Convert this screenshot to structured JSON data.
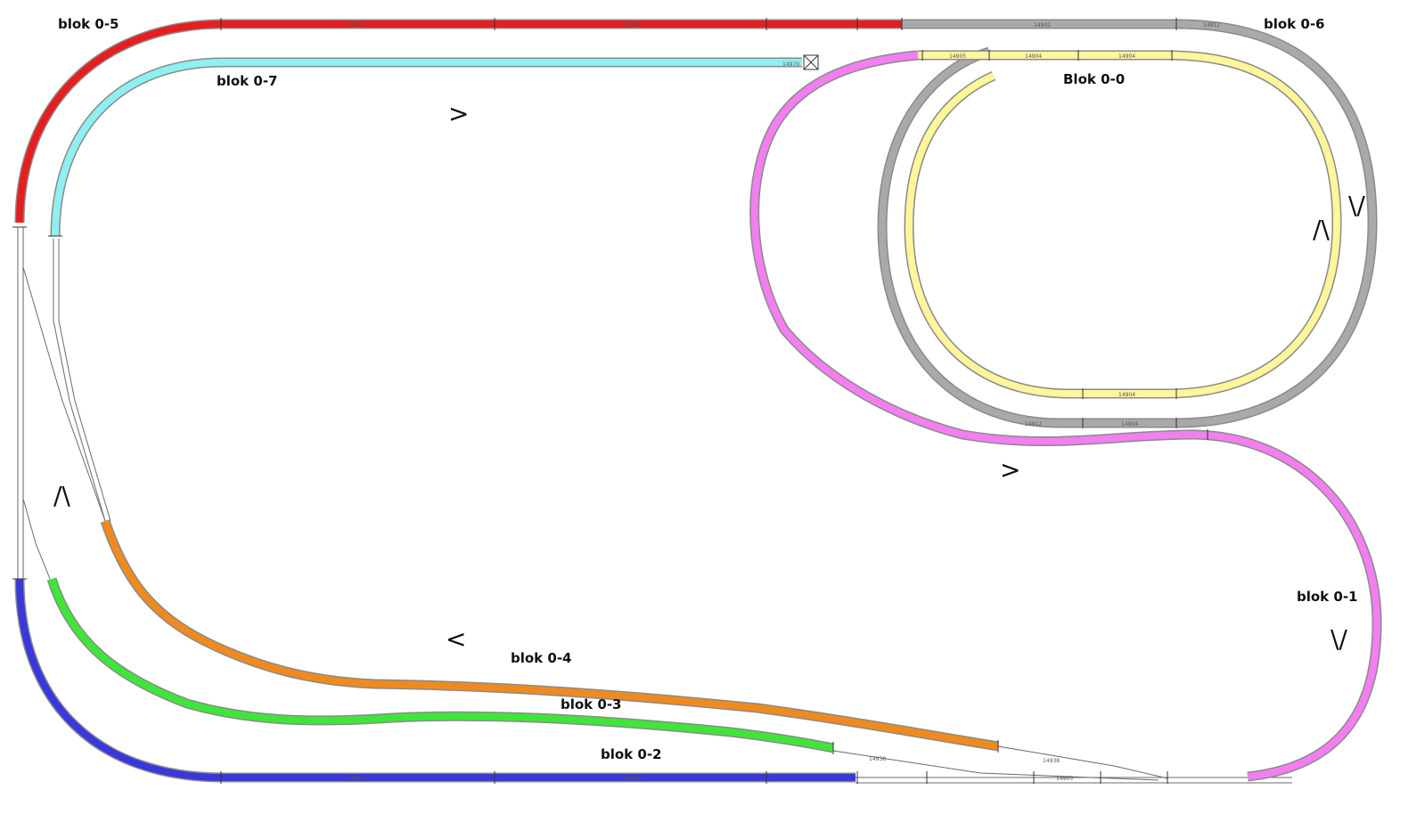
{
  "blocks": {
    "b00": {
      "label": "Blok 0-0",
      "color": "#fff59a",
      "label_color": "#e02020"
    },
    "b01": {
      "label": "blok 0-1",
      "color": "#f27ef0"
    },
    "b02": {
      "label": "blok 0-2",
      "color": "#3838dc"
    },
    "b03": {
      "label": "blok 0-3",
      "color": "#3ee63a"
    },
    "b04": {
      "label": "blok 0-4",
      "color": "#f08a1e"
    },
    "b05": {
      "label": "blok 0-5",
      "color": "#e61e1e"
    },
    "b06": {
      "label": "blok 0-6",
      "color": "#a9a9a9"
    },
    "b07": {
      "label": "blok 0-7",
      "color": "#8ef0f0"
    }
  },
  "direction_marks": {
    "top_left": ">",
    "lower_left": "<",
    "middle": ">",
    "left_side": "/\\",
    "right_inner": "/\\",
    "right_outer": "\\/",
    "right_lower": "\\/"
  },
  "piece_codes": {
    "straight_long": "14902",
    "straight_mid": "14904",
    "straight_short": "14905",
    "curve_r1": "14912",
    "buffer": "14970",
    "turnout": "14938"
  }
}
